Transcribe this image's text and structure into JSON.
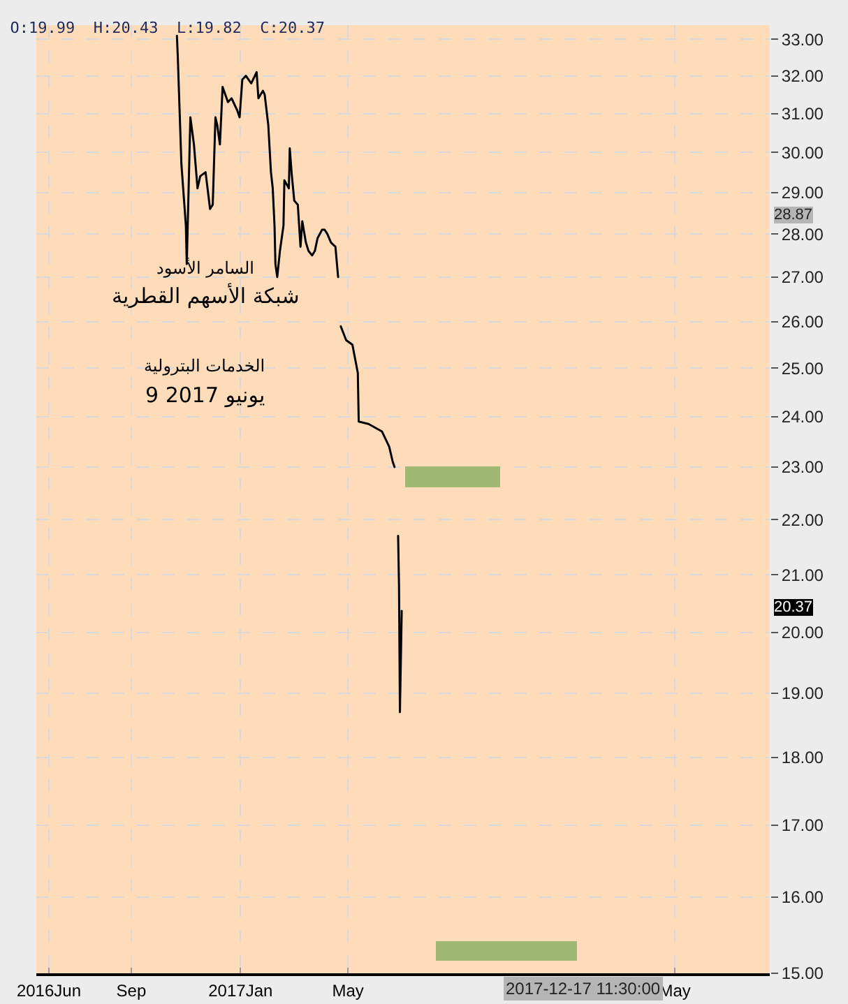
{
  "chart_data": {
    "type": "line",
    "title": "O:19.99  H:20.43  L:19.82  C:20.37",
    "xlim": [
      "2016-05-18",
      "2018-08-15"
    ],
    "xticks": [
      {
        "value": "2016-06-01",
        "label": "2016Jun"
      },
      {
        "value": "2016-09-01",
        "label": "Sep"
      },
      {
        "value": "2017-01-01",
        "label": "2017Jan"
      },
      {
        "value": "2017-05-01",
        "label": "May"
      },
      {
        "value": "2018-05-01",
        "label": "May"
      }
    ],
    "ylim": [
      15,
      33.4
    ],
    "log": true,
    "yticks": [
      {
        "value": 15,
        "label": "15.00"
      },
      {
        "value": 16,
        "label": "16.00"
      },
      {
        "value": 17,
        "label": "17.00"
      },
      {
        "value": 18,
        "label": "18.00"
      },
      {
        "value": 19,
        "label": "19.00"
      },
      {
        "value": 20,
        "label": "20.00"
      },
      {
        "value": 21,
        "label": "21.00"
      },
      {
        "value": 22,
        "label": "22.00"
      },
      {
        "value": 23,
        "label": "23.00"
      },
      {
        "value": 24,
        "label": "24.00"
      },
      {
        "value": 25,
        "label": "25.00"
      },
      {
        "value": 26,
        "label": "26.00"
      },
      {
        "value": 27,
        "label": "27.00"
      },
      {
        "value": 28,
        "label": "28.00"
      },
      {
        "value": 29,
        "label": "29.00"
      },
      {
        "value": 30,
        "label": "30.00"
      },
      {
        "value": 31,
        "label": "31.00"
      },
      {
        "value": 32,
        "label": "32.00"
      },
      {
        "value": 33,
        "label": "33.00"
      }
    ],
    "grid": true,
    "marker": "none",
    "line_style": "solid",
    "series": [
      {
        "color": "#000000",
        "x": [
          "2016-10-22",
          "2016-10-23",
          "2016-10-27",
          "2016-11-01",
          "2016-11-02",
          "2016-11-06",
          "2016-11-10",
          "2016-11-14",
          "2016-11-17",
          "2016-11-23",
          "2016-11-28",
          "2016-12-01",
          "2016-12-04",
          "2016-12-06",
          "2016-12-09",
          "2016-12-12",
          "2016-12-18",
          "2016-12-22",
          "2016-12-28",
          "2016-12-31",
          "2017-01-03",
          "2017-01-07",
          "2017-01-13",
          "2017-01-19",
          "2017-01-21",
          "2017-01-26",
          "2017-01-28",
          "2017-02-01",
          "2017-02-04",
          "2017-02-06",
          "2017-02-08",
          "2017-02-09",
          "2017-02-11",
          "2017-02-14",
          "2017-02-18",
          "2017-02-19",
          "2017-02-24",
          "2017-02-25",
          "2017-02-27",
          "2017-03-02",
          "2017-03-06",
          "2017-03-09",
          "2017-03-11",
          "2017-03-15",
          "2017-03-18",
          "2017-03-22",
          "2017-03-25",
          "2017-03-28",
          "2017-04-02",
          "2017-04-05",
          "2017-04-08",
          "2017-04-12",
          "2017-04-17",
          "2017-04-20",
          "2017-04-21",
          "2017-04-23",
          "2017-04-29",
          "2017-05-06",
          "2017-05-12",
          "2017-05-13",
          "2017-05-24",
          "2017-06-08",
          "2017-06-16",
          "2017-06-20",
          "2017-06-22",
          "2017-06-24",
          "2017-06-26",
          "2017-06-27",
          "2017-06-28",
          "2017-06-29",
          "2017-06-30"
        ],
        "values": [
          33.1,
          32.5,
          29.7,
          28.2,
          27.3,
          30.9,
          30.2,
          29.1,
          29.4,
          29.5,
          28.6,
          28.7,
          30.9,
          30.7,
          30.2,
          31.7,
          31.3,
          31.4,
          31.1,
          30.9,
          31.9,
          32.0,
          31.8,
          32.1,
          31.4,
          31.6,
          31.5,
          30.7,
          29.5,
          29.1,
          28.2,
          27.3,
          27.0,
          27.6,
          28.2,
          29.3,
          29.1,
          30.1,
          29.5,
          28.8,
          28.7,
          27.7,
          28.3,
          27.8,
          27.6,
          27.5,
          27.6,
          27.9,
          28.1,
          28.1,
          28.0,
          27.8,
          27.7,
          27.0,
          null,
          25.9,
          25.6,
          25.5,
          24.9,
          23.9,
          23.85,
          23.7,
          23.4,
          23.1,
          23.0,
          null,
          21.7,
          20.8,
          18.7,
          19.5,
          20.37
        ]
      }
    ],
    "annotations": [
      "السامر الأسود",
      "شبكة الأسهم القطرية",
      "الخدمات البترولية",
      "9 يونيو 2017",
      "2017-12-17 11:30:00",
      "28.87",
      "20.37"
    ]
  }
}
